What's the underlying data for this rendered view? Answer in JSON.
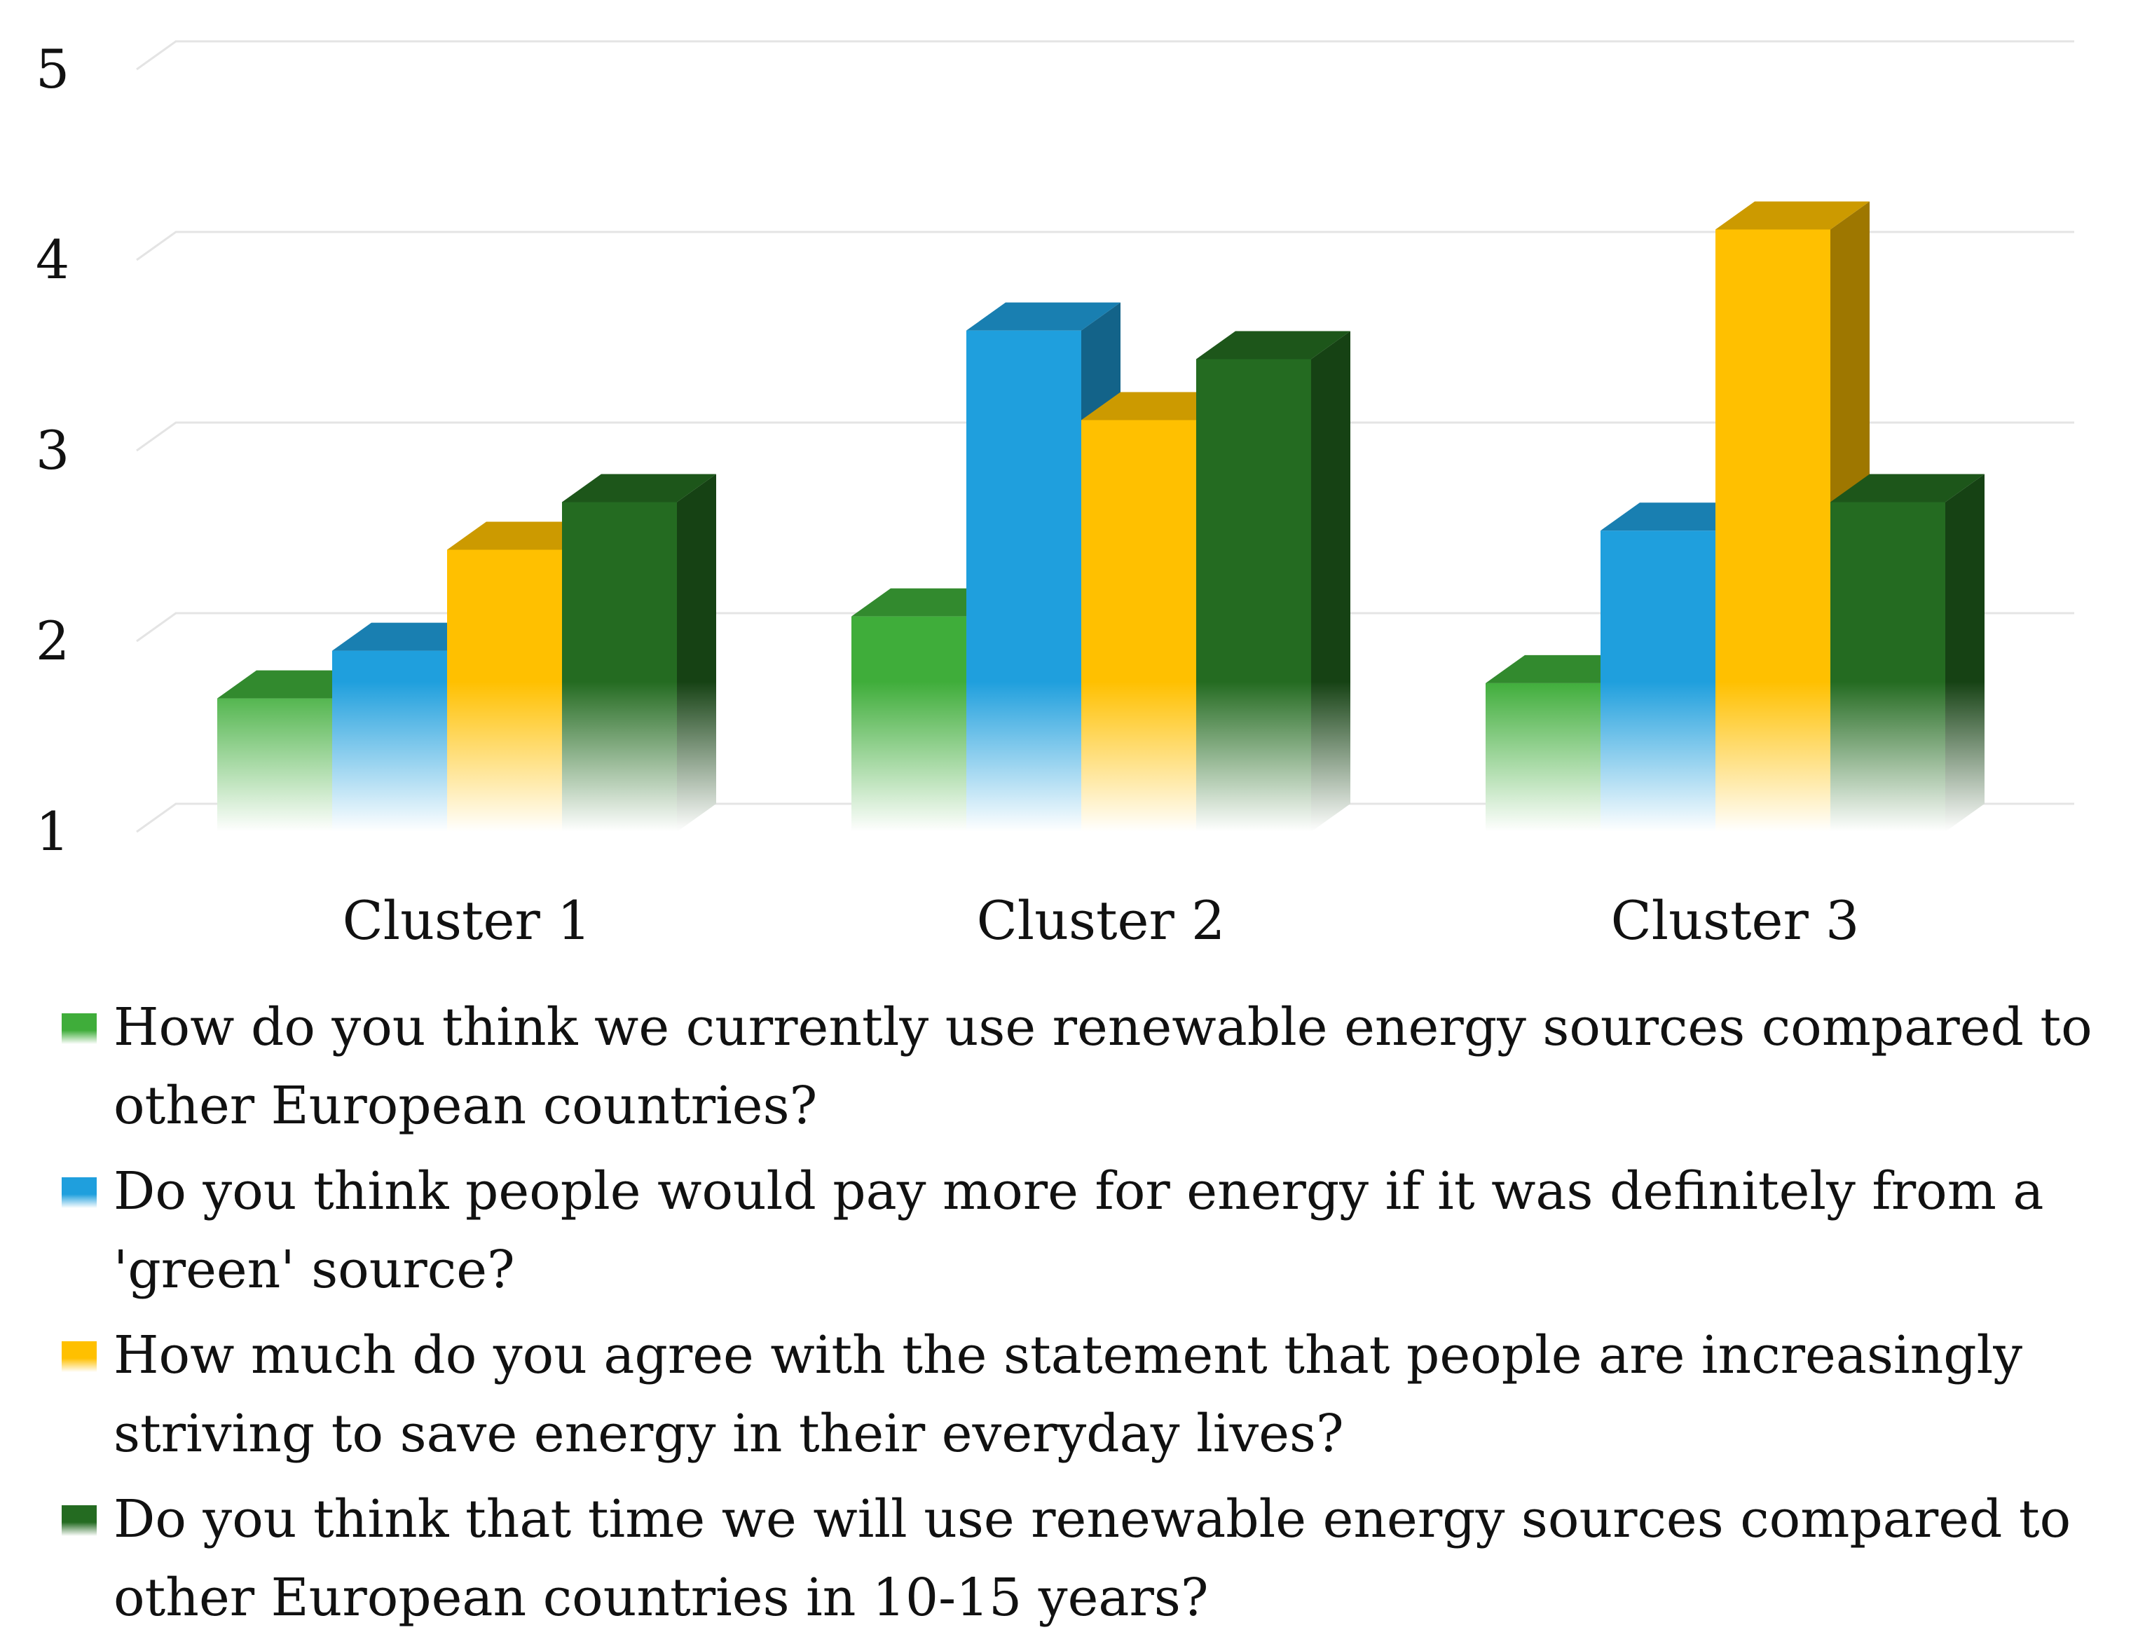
{
  "chart_data": {
    "type": "bar",
    "categories": [
      "Cluster 1",
      "Cluster 2",
      "Cluster 3"
    ],
    "series": [
      {
        "name": "How do you think we currently use renewable energy sources compared to other European countries?",
        "values": [
          1.7,
          2.13,
          1.78
        ],
        "color": "#3fad3a"
      },
      {
        "name": "Do you think people would pay more for energy if it was definitely from a 'green' source?",
        "values": [
          1.95,
          3.63,
          2.58
        ],
        "color": "#1f9fdd"
      },
      {
        "name": "How much do you agree with the statement that people are increasingly striving to save energy in their everyday lives?",
        "values": [
          2.48,
          3.16,
          4.16
        ],
        "color": "#ffc000"
      },
      {
        "name": "Do you think that time we will use renewable energy sources compared to other European countries in 10-15 years?",
        "values": [
          2.73,
          3.48,
          2.73
        ],
        "color": "#246b21"
      }
    ],
    "yticks": [
      "1",
      "2",
      "3",
      "4",
      "5"
    ],
    "ylim": [
      1,
      5
    ],
    "grid": true,
    "legend_position": "bottom",
    "style": "3d-clustered-column"
  }
}
